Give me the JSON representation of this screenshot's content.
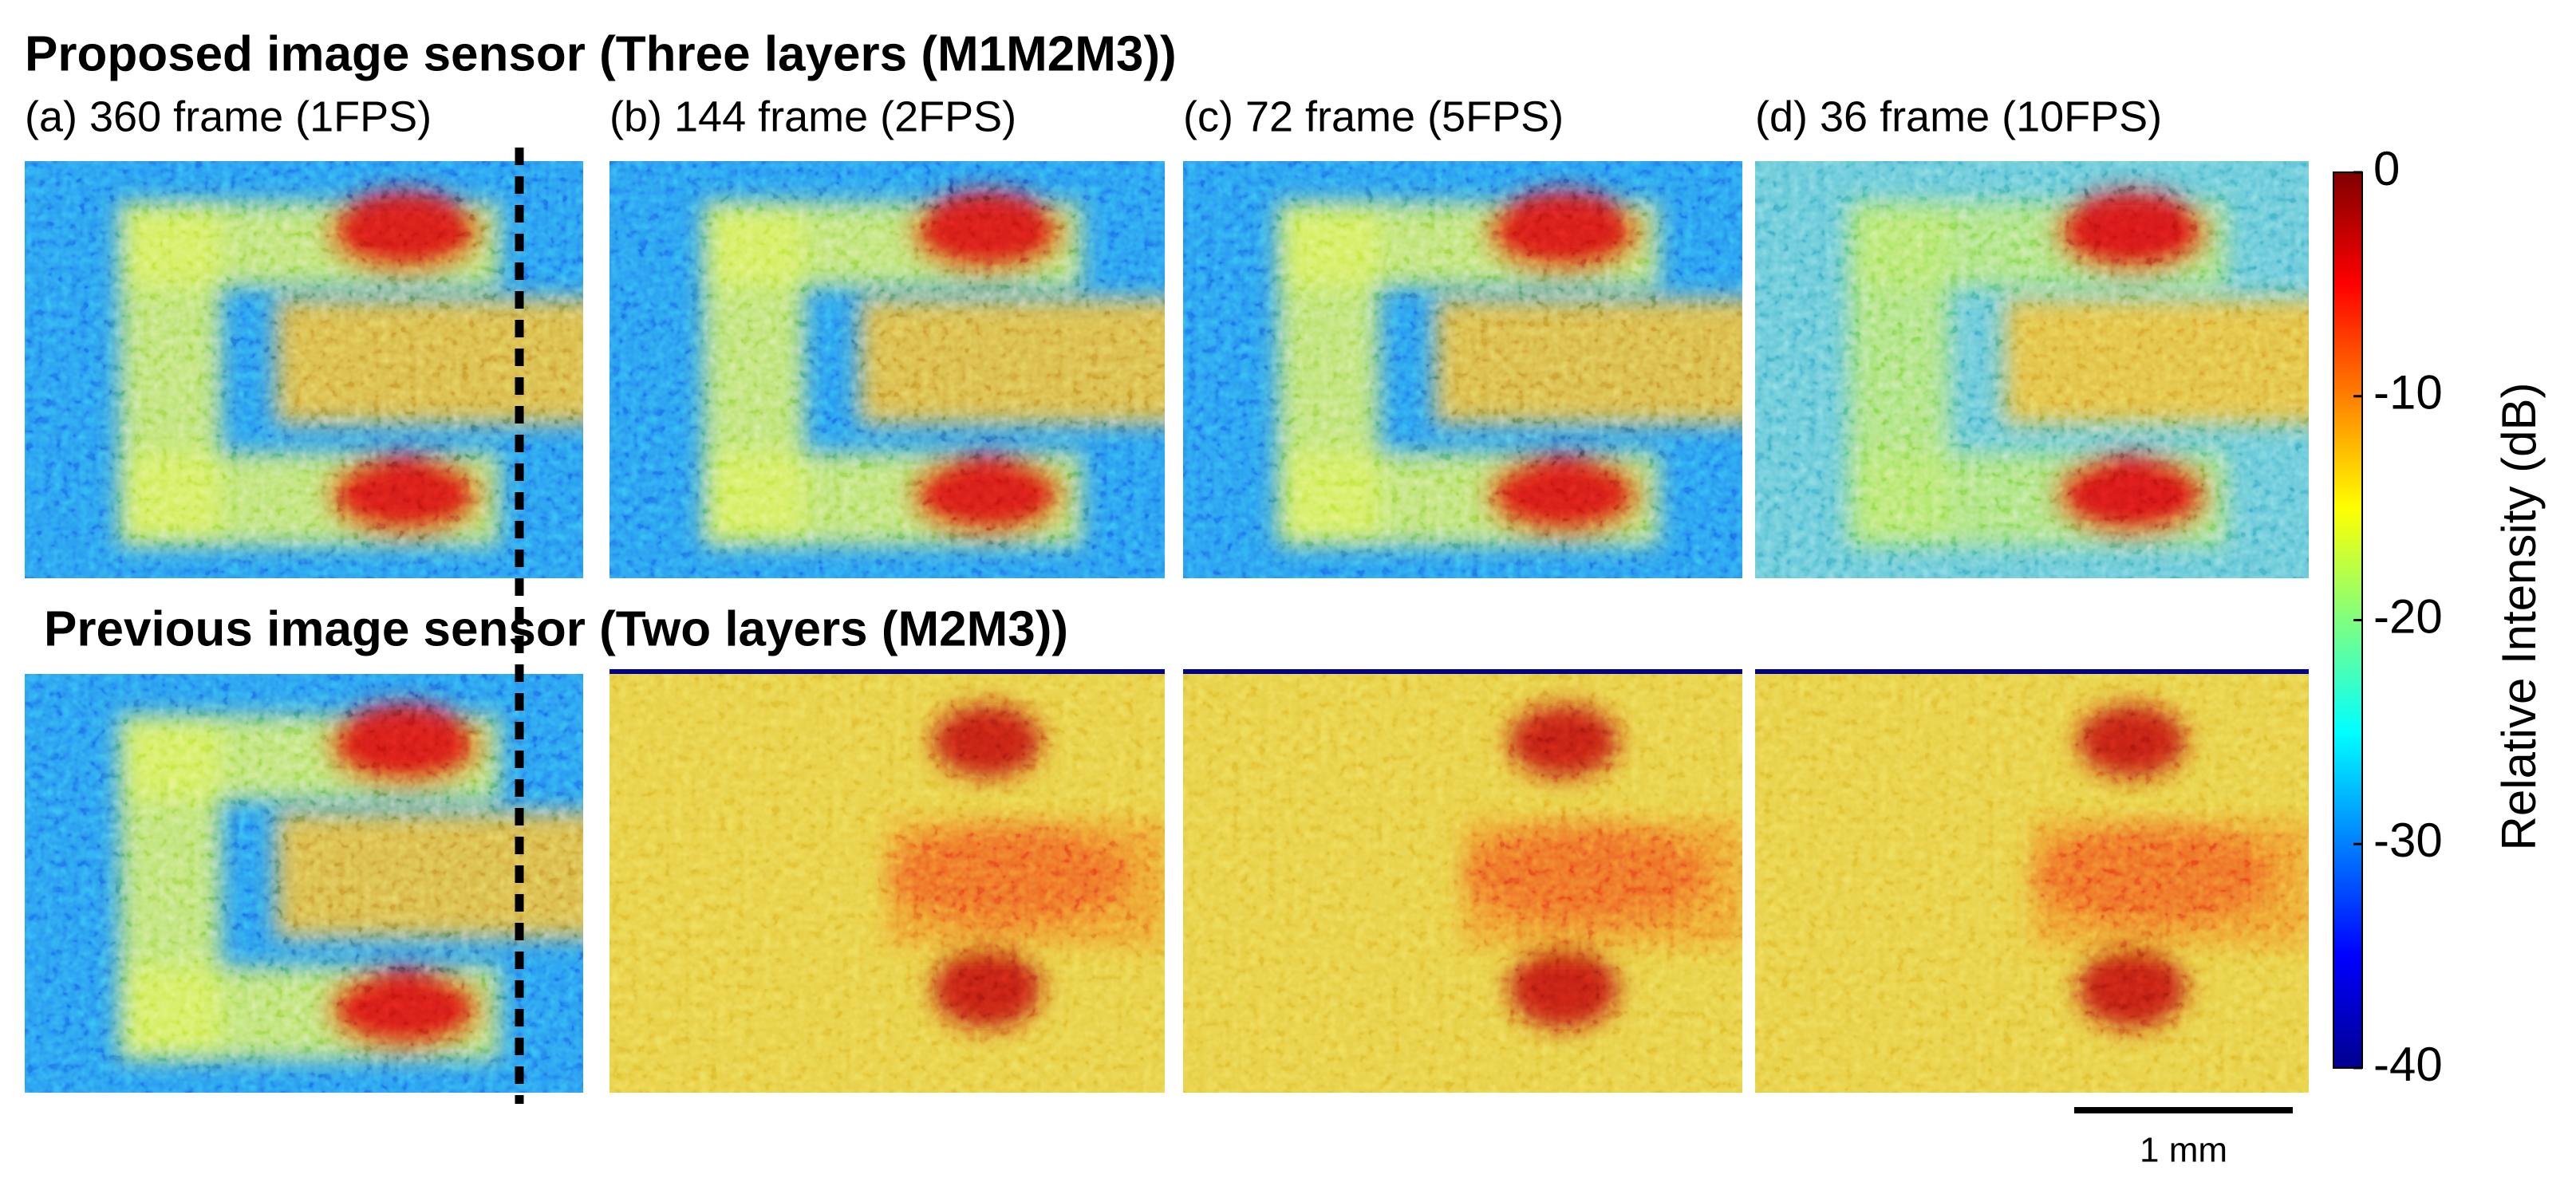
{
  "title_top": "Proposed image sensor (Three layers (M1M2M3))",
  "title_bottom": "Previous image sensor (Two layers (M2M3))",
  "panel_labels": [
    "(a) 360 frame (1FPS)",
    "(b) 144 frame (2FPS)",
    "(c) 72 frame (5FPS)",
    "(d) 36 frame  (10FPS)"
  ],
  "colorbar": {
    "label": "Relative Intensity (dB)",
    "lim": [
      -40,
      0
    ],
    "ticks": [
      0,
      -10,
      -20,
      -30,
      -40
    ]
  },
  "scale_bar": "1 mm"
}
